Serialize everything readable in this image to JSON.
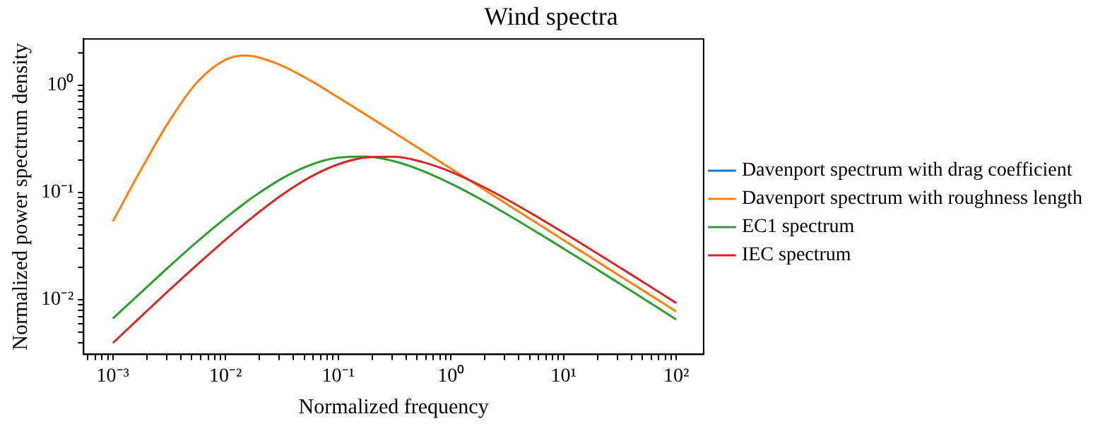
{
  "chart_data": {
    "type": "line",
    "title": "Wind spectra",
    "xlabel": "Normalized frequency",
    "ylabel": "Normalized power spectrum density",
    "log": "xy",
    "grid": false,
    "legend": "right",
    "marker": "none",
    "line_style": "solid",
    "x": [
      0.001,
      0.00178,
      0.00316,
      0.00562,
      0.01,
      0.0148,
      0.0178,
      0.0316,
      0.0562,
      0.1,
      0.178,
      0.316,
      0.562,
      1,
      1.78,
      3.16,
      5.62,
      10,
      17.8,
      31.6,
      56.2,
      100
    ],
    "xlim": [
      0.00055,
      175
    ],
    "ylim": [
      0.0031,
      2.7
    ],
    "xticks": [
      {
        "value": 0.0006,
        "label": null
      },
      {
        "value": 0.0007,
        "label": null
      },
      {
        "value": 0.0008,
        "label": null
      },
      {
        "value": 0.0009,
        "label": null
      },
      {
        "value": 0.001,
        "label": "10⁻³"
      },
      {
        "value": 0.002,
        "label": null
      },
      {
        "value": 0.003,
        "label": null
      },
      {
        "value": 0.004,
        "label": null
      },
      {
        "value": 0.005,
        "label": null
      },
      {
        "value": 0.006,
        "label": null
      },
      {
        "value": 0.007,
        "label": null
      },
      {
        "value": 0.008,
        "label": null
      },
      {
        "value": 0.009,
        "label": null
      },
      {
        "value": 0.01,
        "label": "10⁻²"
      },
      {
        "value": 0.02,
        "label": null
      },
      {
        "value": 0.03,
        "label": null
      },
      {
        "value": 0.04,
        "label": null
      },
      {
        "value": 0.05,
        "label": null
      },
      {
        "value": 0.06,
        "label": null
      },
      {
        "value": 0.07,
        "label": null
      },
      {
        "value": 0.08,
        "label": null
      },
      {
        "value": 0.09,
        "label": null
      },
      {
        "value": 0.1,
        "label": "10⁻¹"
      },
      {
        "value": 0.2,
        "label": null
      },
      {
        "value": 0.3,
        "label": null
      },
      {
        "value": 0.4,
        "label": null
      },
      {
        "value": 0.5,
        "label": null
      },
      {
        "value": 0.6,
        "label": null
      },
      {
        "value": 0.7,
        "label": null
      },
      {
        "value": 0.8,
        "label": null
      },
      {
        "value": 0.9,
        "label": null
      },
      {
        "value": 1,
        "label": "10⁰"
      },
      {
        "value": 2,
        "label": null
      },
      {
        "value": 3,
        "label": null
      },
      {
        "value": 4,
        "label": null
      },
      {
        "value": 5,
        "label": null
      },
      {
        "value": 6,
        "label": null
      },
      {
        "value": 7,
        "label": null
      },
      {
        "value": 8,
        "label": null
      },
      {
        "value": 9,
        "label": null
      },
      {
        "value": 10,
        "label": "10¹"
      },
      {
        "value": 20,
        "label": null
      },
      {
        "value": 30,
        "label": null
      },
      {
        "value": 40,
        "label": null
      },
      {
        "value": 50,
        "label": null
      },
      {
        "value": 60,
        "label": null
      },
      {
        "value": 70,
        "label": null
      },
      {
        "value": 80,
        "label": null
      },
      {
        "value": 90,
        "label": null
      },
      {
        "value": 100,
        "label": "10²"
      }
    ],
    "yticks": [
      {
        "value": 0.004,
        "label": null
      },
      {
        "value": 0.005,
        "label": null
      },
      {
        "value": 0.006,
        "label": null
      },
      {
        "value": 0.007,
        "label": null
      },
      {
        "value": 0.008,
        "label": null
      },
      {
        "value": 0.009,
        "label": null
      },
      {
        "value": 0.01,
        "label": "10⁻²"
      },
      {
        "value": 0.02,
        "label": null
      },
      {
        "value": 0.03,
        "label": null
      },
      {
        "value": 0.04,
        "label": null
      },
      {
        "value": 0.05,
        "label": null
      },
      {
        "value": 0.06,
        "label": null
      },
      {
        "value": 0.07,
        "label": null
      },
      {
        "value": 0.08,
        "label": null
      },
      {
        "value": 0.09,
        "label": null
      },
      {
        "value": 0.1,
        "label": "10⁻¹"
      },
      {
        "value": 0.2,
        "label": null
      },
      {
        "value": 0.3,
        "label": null
      },
      {
        "value": 0.4,
        "label": null
      },
      {
        "value": 0.5,
        "label": null
      },
      {
        "value": 0.6,
        "label": null
      },
      {
        "value": 0.7,
        "label": null
      },
      {
        "value": 0.8,
        "label": null
      },
      {
        "value": 0.9,
        "label": null
      },
      {
        "value": 1,
        "label": "10⁰"
      },
      {
        "value": 2,
        "label": null
      }
    ],
    "series": [
      {
        "name": "Davenport spectrum with drag coefficient",
        "color": "#1f77b4",
        "values": [
          null,
          null,
          null,
          null,
          null,
          null,
          null,
          null,
          null,
          null,
          null,
          null,
          null,
          null,
          null,
          null,
          null,
          null,
          null,
          null,
          null,
          null
        ]
      },
      {
        "name": "Davenport spectrum with roughness length",
        "color": "#ff7f0e",
        "values": [
          0.0538,
          0.164,
          0.462,
          1.07,
          1.73,
          1.89,
          1.86,
          1.52,
          1.11,
          0.77,
          0.527,
          0.36,
          0.245,
          0.167,
          0.114,
          0.0776,
          0.0529,
          0.036,
          0.0245,
          0.0167,
          0.0114,
          0.00776
        ]
      },
      {
        "name": "EC1 spectrum",
        "color": "#2ca02c",
        "values": [
          0.00669,
          0.0117,
          0.0204,
          0.0349,
          0.0578,
          0.0796,
          0.0916,
          0.135,
          0.18,
          0.211,
          0.216,
          0.195,
          0.159,
          0.121,
          0.0882,
          0.0625,
          0.0435,
          0.03,
          0.0206,
          0.0141,
          0.00962,
          0.00655
        ]
      },
      {
        "name": "IEC spectrum",
        "color": "#d62728",
        "values": [
          0.00396,
          0.00699,
          0.0123,
          0.0213,
          0.0363,
          0.0514,
          0.0601,
          0.0947,
          0.139,
          0.183,
          0.212,
          0.215,
          0.192,
          0.156,
          0.118,
          0.0859,
          0.0607,
          0.0423,
          0.0291,
          0.02,
          0.0137,
          0.00933
        ]
      }
    ]
  }
}
